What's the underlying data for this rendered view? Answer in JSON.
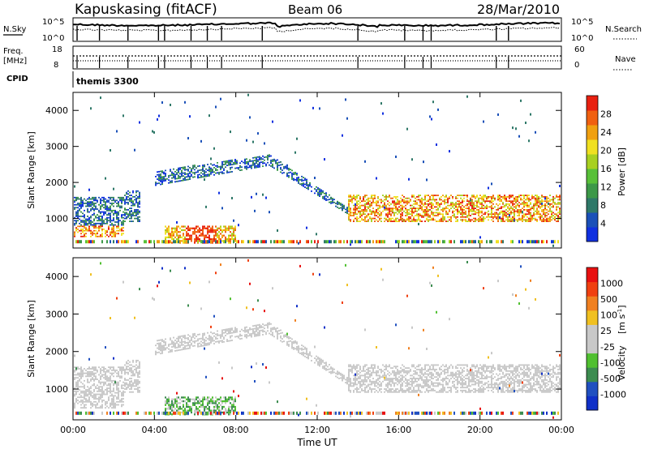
{
  "header": {
    "station": "Kapuskasing (fitACF)",
    "beam": "Beam 06",
    "date": "28/Mar/2010"
  },
  "top_panels": {
    "nsky_label": "N.Sky",
    "nsearch_label": "N.Search",
    "noise_ticks": [
      "10^5",
      "10^0"
    ],
    "freq_label_1": "Freq.",
    "freq_label_2": "[MHz]",
    "freq_ticks": [
      "18",
      "8"
    ],
    "nave_label": "Nave",
    "nave_ticks": [
      "60",
      "0"
    ],
    "cpid_label": "CPID",
    "cpid_value": "themis 3300"
  },
  "chart_data": [
    {
      "type": "heatmap",
      "panel": "power",
      "ylabel": "Slant Range [km]",
      "ylim": [
        180,
        4500
      ],
      "yticks": [
        1000,
        2000,
        3000,
        4000
      ],
      "xlim": [
        0,
        24
      ],
      "colorbar": {
        "label": "Power [dB]",
        "ticks": [
          4,
          8,
          12,
          16,
          20,
          24,
          28
        ],
        "colors": [
          "#1030e0",
          "#1a50b8",
          "#2e7868",
          "#3c9848",
          "#58c038",
          "#a8d020",
          "#f0e020",
          "#f0a010",
          "#f06010",
          "#e82010"
        ]
      }
    },
    {
      "type": "heatmap",
      "panel": "velocity",
      "ylabel": "Slant Range [km]",
      "ylim": [
        180,
        4500
      ],
      "yticks": [
        1000,
        2000,
        3000,
        4000
      ],
      "xlim": [
        0,
        24
      ],
      "xlabel": "Time UT",
      "xticks": [
        "00:00",
        "04:00",
        "08:00",
        "12:00",
        "16:00",
        "20:00",
        "00:00"
      ],
      "colorbar": {
        "label": "Velocity",
        "unit": "[m s",
        "unit_exp": "-1",
        "unit_close": "]",
        "ticks": [
          1000,
          500,
          100,
          25,
          -25,
          -100,
          -500,
          -1000
        ],
        "colors": [
          "#1030c8",
          "#2050c0",
          "#3c8c50",
          "#50c030",
          "#c8c8c8",
          "#c8c8c8",
          "#f0c020",
          "#f08020",
          "#f04010",
          "#e81010"
        ]
      }
    }
  ]
}
